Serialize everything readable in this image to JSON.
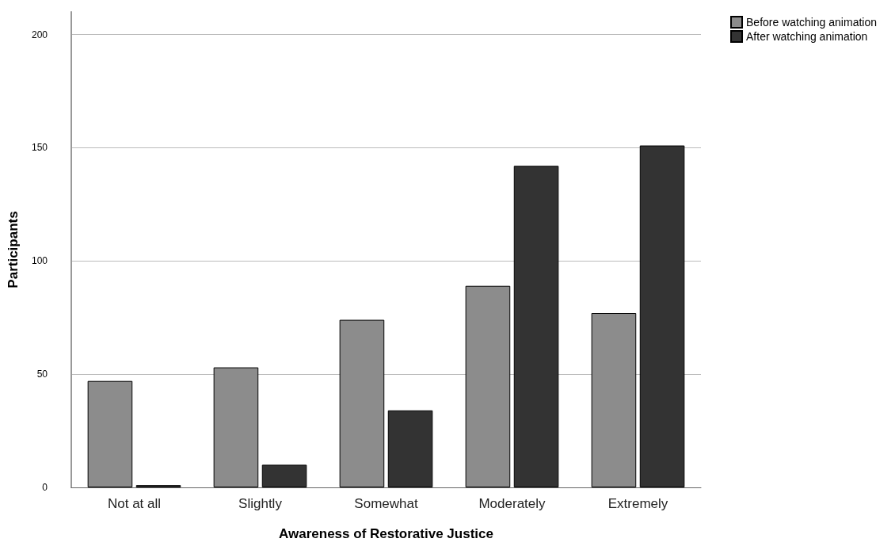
{
  "chart_data": {
    "type": "bar",
    "xlabel": "Awareness of Restorative Justice",
    "ylabel": "Participants",
    "categories": [
      "Not at all",
      "Slightly",
      "Somewhat",
      "Moderately",
      "Extremely"
    ],
    "series": [
      {
        "name": "Before watching animation",
        "color": "#8c8c8c",
        "values": [
          47,
          53,
          74,
          89,
          77
        ]
      },
      {
        "name": "After watching animation",
        "color": "#333333",
        "values": [
          1,
          10,
          34,
          142,
          151
        ]
      }
    ],
    "ylim": [
      0,
      210
    ],
    "yticks": [
      0,
      50,
      100,
      150,
      200
    ],
    "grid": "y",
    "legend": "top right"
  }
}
